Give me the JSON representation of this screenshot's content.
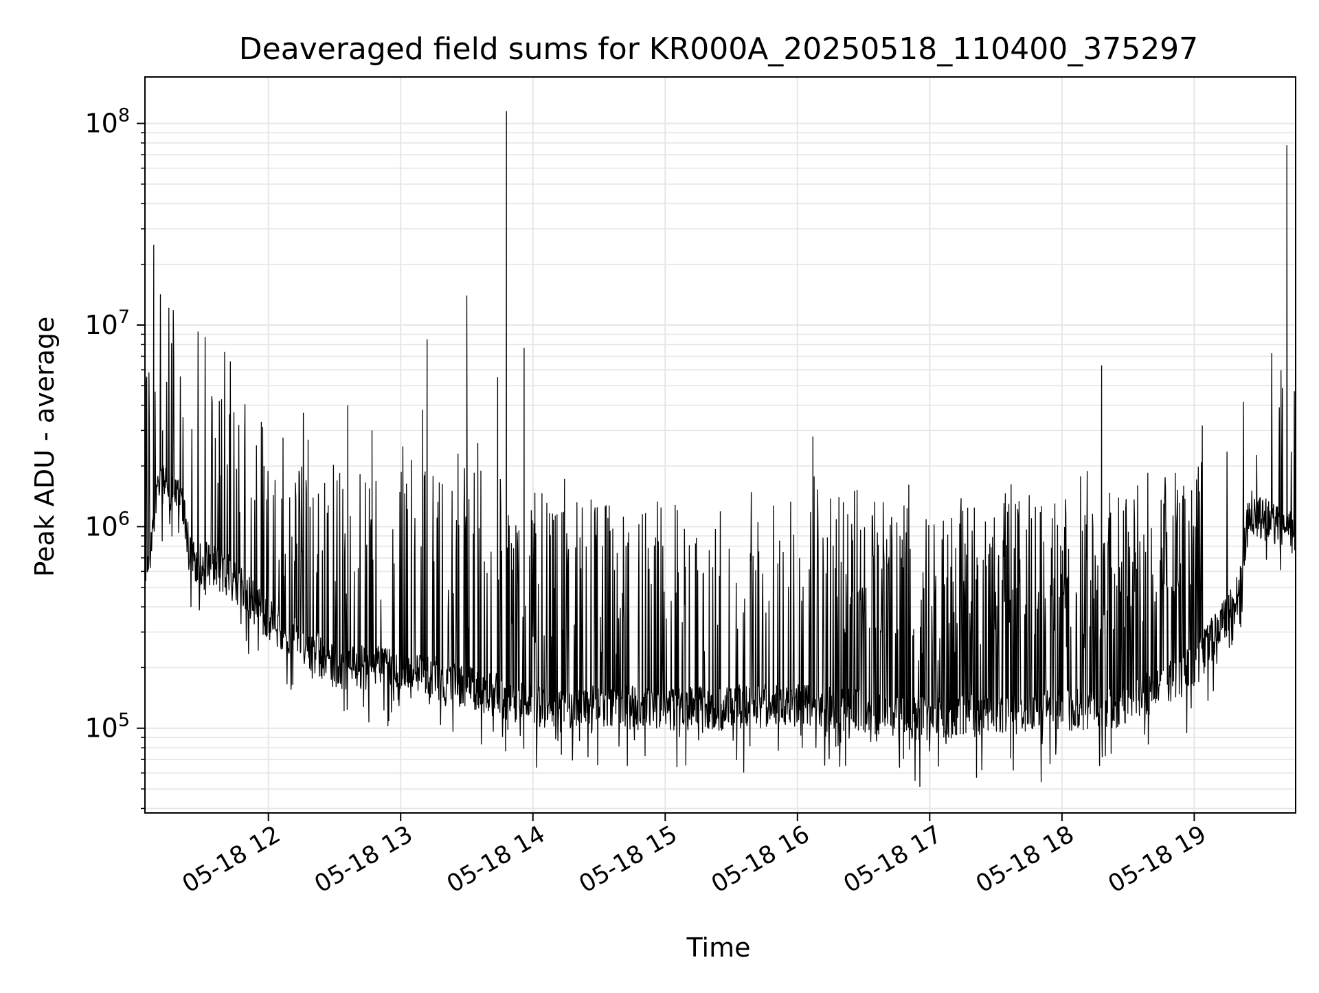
{
  "chart_data": {
    "type": "line",
    "title": "Deaveraged field sums for KR000A_20250518_110400_375297",
    "xlabel": "Time",
    "ylabel": "Peak ADU - average",
    "y_scale": "log",
    "grid": true,
    "legend": "none",
    "xlim": [
      "2025-05-18 11:04",
      "2025-05-18 19:46"
    ],
    "ylim": [
      38000,
      170000000
    ],
    "x_ticks": [
      {
        "value": "2025-05-18 12:00",
        "label": "05-18 12"
      },
      {
        "value": "2025-05-18 13:00",
        "label": "05-18 13"
      },
      {
        "value": "2025-05-18 14:00",
        "label": "05-18 14"
      },
      {
        "value": "2025-05-18 15:00",
        "label": "05-18 15"
      },
      {
        "value": "2025-05-18 16:00",
        "label": "05-18 16"
      },
      {
        "value": "2025-05-18 17:00",
        "label": "05-18 17"
      },
      {
        "value": "2025-05-18 18:00",
        "label": "05-18 18"
      },
      {
        "value": "2025-05-18 19:00",
        "label": "05-18 19"
      }
    ],
    "y_ticks": [
      {
        "value": 100000,
        "label_base": "10",
        "label_exp": "5"
      },
      {
        "value": 1000000,
        "label_base": "10",
        "label_exp": "6"
      },
      {
        "value": 10000000,
        "label_base": "10",
        "label_exp": "7"
      },
      {
        "value": 100000000,
        "label_base": "10",
        "label_exp": "8"
      }
    ],
    "colors": {
      "line": "#000000",
      "grid": "#e6e6e6",
      "axes": "#000000"
    },
    "series": [
      {
        "baseline": [
          [
            "2025-05-18 11:04",
            500000
          ],
          [
            "2025-05-18 11:10",
            1600000
          ],
          [
            "2025-05-18 11:20",
            1500000
          ],
          [
            "2025-05-18 11:25",
            700000
          ],
          [
            "2025-05-18 11:40",
            600000
          ],
          [
            "2025-05-18 12:00",
            350000
          ],
          [
            "2025-05-18 12:30",
            200000
          ],
          [
            "2025-05-18 13:00",
            200000
          ],
          [
            "2025-05-18 13:30",
            160000
          ],
          [
            "2025-05-18 14:00",
            130000
          ],
          [
            "2025-05-18 15:00",
            125000
          ],
          [
            "2025-05-18 16:00",
            130000
          ],
          [
            "2025-05-18 16:30",
            120000
          ],
          [
            "2025-05-18 17:00",
            110000
          ],
          [
            "2025-05-18 17:30",
            120000
          ],
          [
            "2025-05-18 18:00",
            120000
          ],
          [
            "2025-05-18 18:30",
            130000
          ],
          [
            "2025-05-18 19:00",
            200000
          ],
          [
            "2025-05-18 19:20",
            450000
          ],
          [
            "2025-05-18 19:25",
            1200000
          ],
          [
            "2025-05-18 19:46",
            900000
          ]
        ],
        "spikes": [
          [
            "2025-05-18 11:08",
            25000000
          ],
          [
            "2025-05-18 11:12",
            3000000
          ],
          [
            "2025-05-18 11:28",
            2800000
          ],
          [
            "2025-05-18 11:38",
            1800000
          ],
          [
            "2025-05-18 11:58",
            2000000
          ],
          [
            "2025-05-18 12:18",
            2700000
          ],
          [
            "2025-05-18 12:36",
            4000000
          ],
          [
            "2025-05-18 12:47",
            3000000
          ],
          [
            "2025-05-18 13:01",
            2500000
          ],
          [
            "2025-05-18 13:10",
            3800000
          ],
          [
            "2025-05-18 13:12",
            8500000
          ],
          [
            "2025-05-18 13:26",
            2300000
          ],
          [
            "2025-05-18 13:30",
            14000000
          ],
          [
            "2025-05-18 13:35",
            2600000
          ],
          [
            "2025-05-18 13:44",
            5500000
          ],
          [
            "2025-05-18 13:48",
            115000000
          ],
          [
            "2025-05-18 13:56",
            7700000
          ],
          [
            "2025-05-18 16:07",
            2800000
          ],
          [
            "2025-05-18 18:18",
            6300000
          ],
          [
            "2025-05-18 19:42",
            78000000
          ]
        ]
      }
    ]
  }
}
